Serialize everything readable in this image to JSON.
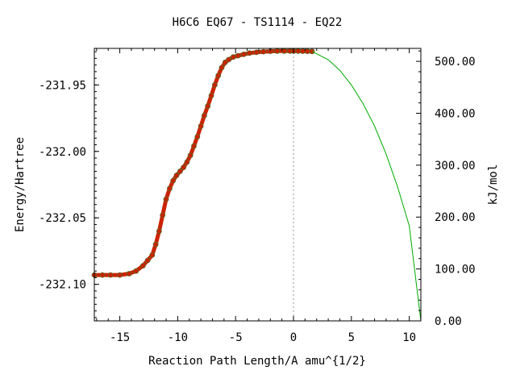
{
  "chart_data": {
    "type": "scatter",
    "title": "H6C6   EQ67 - TS1114 - EQ22",
    "xlabel": "Reaction Path Length/A amu^{1/2}",
    "ylabel_left": "Energy/Hartree",
    "ylabel_right": "kJ/mol",
    "xlim": [
      -17.2,
      11.0
    ],
    "ylim_left": [
      -232.1275,
      -231.9225
    ],
    "ylim_right": [
      0.0,
      525.0
    ],
    "x_ticks": [
      -15,
      -10,
      -5,
      0,
      5,
      10
    ],
    "x_tick_labels": [
      "-15",
      "-10",
      "-5",
      "0",
      "5",
      "10"
    ],
    "y_left_ticks": [
      -231.95,
      -232.0,
      -232.05,
      -232.1
    ],
    "y_left_tick_labels": [
      "-231.95",
      "-232.00",
      "-232.05",
      "-232.10"
    ],
    "y_right_ticks": [
      500,
      400,
      300,
      200,
      100,
      0
    ],
    "y_right_tick_labels": [
      "500.00",
      "400.00",
      "300.00",
      "200.00",
      "100.00",
      "0.00"
    ],
    "ts_marker_x": 0,
    "colors": {
      "irc_points": "#cc2200",
      "irc_point_edge": "#556b2f",
      "approx_curve": "#00aa00",
      "ts_line": "#999999",
      "axis": "#000000"
    },
    "series": [
      {
        "kind": "points",
        "x": [
          -17.2,
          -16.5,
          -15.8,
          -15.0,
          -14.2,
          -13.6,
          -13.0,
          -12.6,
          -12.2,
          -11.9,
          -11.6,
          -11.3,
          -11.0,
          -10.7,
          -10.4,
          -10.1,
          -9.8,
          -9.5,
          -9.2,
          -8.9,
          -8.6,
          -8.3,
          -8.0,
          -7.7,
          -7.4,
          -7.1,
          -6.8,
          -6.5,
          -6.2,
          -5.9,
          -5.6,
          -5.2,
          -4.8,
          -4.3,
          -3.8,
          -3.2,
          -2.6,
          -2.0,
          -1.4,
          -0.8,
          -0.3,
          0.0,
          0.4,
          0.8,
          1.2,
          1.6
        ],
        "y": [
          -232.093,
          -232.093,
          -232.093,
          -232.093,
          -232.092,
          -232.09,
          -232.086,
          -232.082,
          -232.078,
          -232.07,
          -232.06,
          -232.048,
          -232.036,
          -232.028,
          -232.022,
          -232.018,
          -232.015,
          -232.012,
          -232.008,
          -232.003,
          -231.996,
          -231.989,
          -231.981,
          -231.973,
          -231.966,
          -231.958,
          -231.95,
          -231.943,
          -231.937,
          -231.933,
          -231.931,
          -231.929,
          -231.928,
          -231.927,
          -231.926,
          -231.9255,
          -231.925,
          -231.9247,
          -231.9245,
          -231.9245,
          -231.9245,
          -231.9245,
          -231.9245,
          -231.9246,
          -231.9247,
          -231.9248
        ]
      },
      {
        "kind": "line",
        "x": [
          1.6,
          3.0,
          4.0,
          5.0,
          6.0,
          7.0,
          8.0,
          9.0,
          10.0,
          11.0
        ],
        "y": [
          -231.9248,
          -231.931,
          -231.939,
          -231.95,
          -231.964,
          -231.981,
          -232.002,
          -232.027,
          -232.056,
          -232.1275
        ]
      }
    ]
  }
}
